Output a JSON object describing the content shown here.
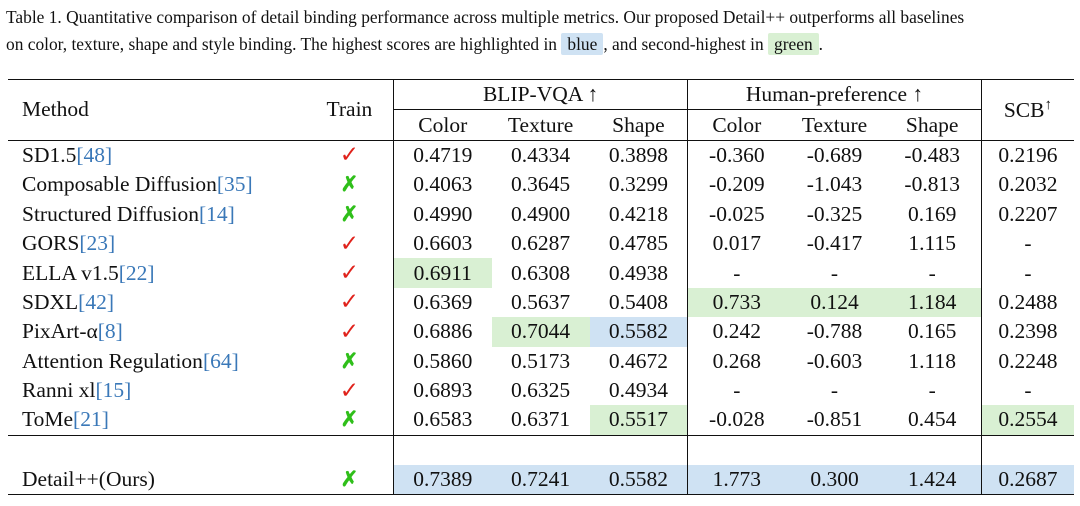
{
  "caption": {
    "line1": "Table 1. Quantitative comparison of detail binding performance across multiple metrics. Our proposed Detail++ outperforms all baselines",
    "line2_pre": "on color, texture, shape and style binding. The highest scores are highlighted in",
    "blue_label": "blue",
    "middle": ", and second-highest in",
    "green_label": "green",
    "end": "."
  },
  "header": {
    "method": "Method",
    "train": "Train",
    "blip_group": "BLIP-VQA ↑",
    "human_group": "Human-preference ↑",
    "scb": "SCB",
    "scb_arrow": "↑",
    "color": "Color",
    "texture": "Texture",
    "shape": "Shape"
  },
  "colors": {
    "blue": "#cfe2f3",
    "green": "#d9f0d3",
    "tick": "#e0221b",
    "cross": "#2fbf1a",
    "citation": "#3a78b8"
  },
  "rows": [
    {
      "name": "SD1.5",
      "ref": "[48]",
      "train": "✓",
      "bc": "0.4719",
      "bt": "0.4334",
      "bs": "0.3898",
      "hc": "-0.360",
      "ht": "-0.689",
      "hs": "-0.483",
      "scb": "0.2196"
    },
    {
      "name": "Composable Diffusion",
      "ref": "[35]",
      "train": "✗",
      "bc": "0.4063",
      "bt": "0.3645",
      "bs": "0.3299",
      "hc": "-0.209",
      "ht": "-1.043",
      "hs": "-0.813",
      "scb": "0.2032"
    },
    {
      "name": "Structured Diffusion",
      "ref": "[14]",
      "train": "✗",
      "bc": "0.4990",
      "bt": "0.4900",
      "bs": "0.4218",
      "hc": "-0.025",
      "ht": "-0.325",
      "hs": "0.169",
      "scb": "0.2207"
    },
    {
      "name": "GORS",
      "ref": "[23]",
      "train": "✓",
      "bc": "0.6603",
      "bt": "0.6287",
      "bs": "0.4785",
      "hc": "0.017",
      "ht": "-0.417",
      "hs": "1.115",
      "scb": "-"
    },
    {
      "name": "ELLA v1.5",
      "ref": "[22]",
      "train": "✓",
      "bc": "0.6911",
      "bt": "0.6308",
      "bs": "0.4938",
      "hc": "-",
      "ht": "-",
      "hs": "-",
      "scb": "-"
    },
    {
      "name": "SDXL",
      "ref": "[42]",
      "train": "✓",
      "bc": "0.6369",
      "bt": "0.5637",
      "bs": "0.5408",
      "hc": "0.733",
      "ht": "0.124",
      "hs": "1.184",
      "scb": "0.2488"
    },
    {
      "name": "PixArt-α",
      "ref": "[8]",
      "train": "✓",
      "bc": "0.6886",
      "bt": "0.7044",
      "bs": "0.5582",
      "hc": "0.242",
      "ht": "-0.788",
      "hs": "0.165",
      "scb": "0.2398"
    },
    {
      "name": "Attention Regulation",
      "ref": "[64]",
      "train": "✗",
      "bc": "0.5860",
      "bt": "0.5173",
      "bs": "0.4672",
      "hc": "0.268",
      "ht": "-0.603",
      "hs": "1.118",
      "scb": "0.2248"
    },
    {
      "name": "Ranni xl",
      "ref": "[15]",
      "train": "✓",
      "bc": "0.6893",
      "bt": "0.6325",
      "bs": "0.4934",
      "hc": "-",
      "ht": "-",
      "hs": "-",
      "scb": "-"
    },
    {
      "name": "ToMe",
      "ref": "[21]",
      "train": "✗",
      "bc": "0.6583",
      "bt": "0.6371",
      "bs": "0.5517",
      "hc": "-0.028",
      "ht": "-0.851",
      "hs": "0.454",
      "scb": "0.2554"
    }
  ],
  "ours": {
    "name": "Detail++(Ours)",
    "train": "✗",
    "bc": "0.7389",
    "bt": "0.7241",
    "bs": "0.5582",
    "hc": "1.773",
    "ht": "0.300",
    "hs": "1.424",
    "scb": "0.2687"
  }
}
